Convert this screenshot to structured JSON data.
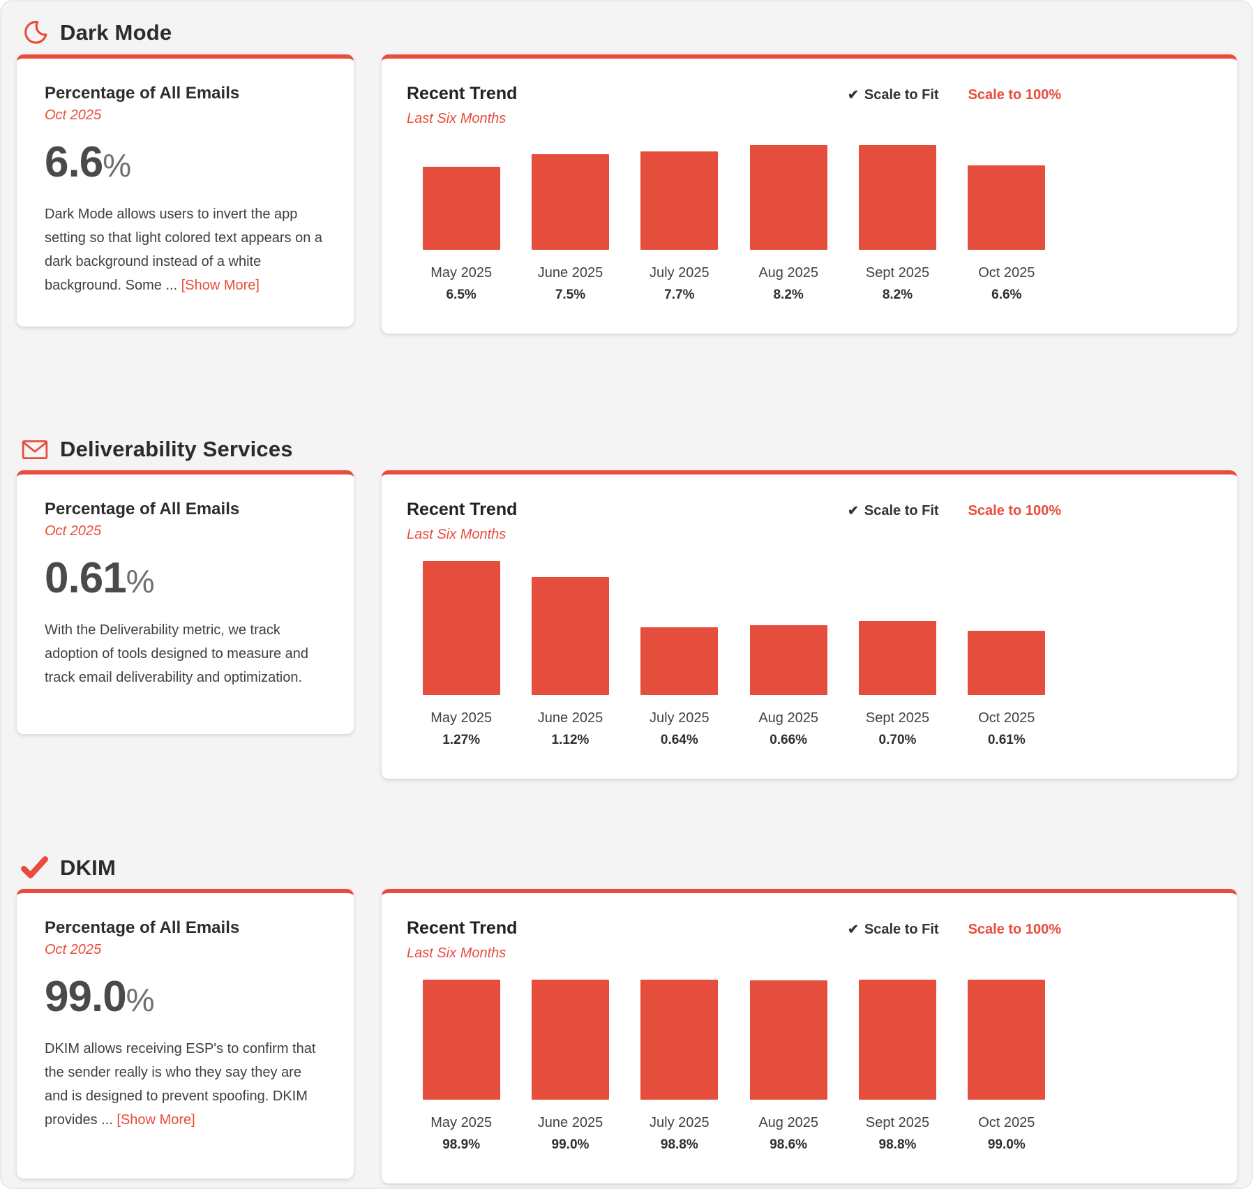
{
  "accent_color": "#e74c3c",
  "bar_color": "#e54d3d",
  "sections": [
    {
      "title": "Dark Mode",
      "icon": "moon-icon",
      "summary": {
        "heading": "Percentage of All Emails",
        "period": "Oct 2025",
        "value": "6.6",
        "unit": "%",
        "description": "Dark Mode allows users to invert the app setting so that light colored text appears on a dark background instead of a white background. Some ...",
        "show_more_label": "[Show More]"
      },
      "trend": {
        "heading": "Recent Trend",
        "subheading": "Last Six Months",
        "scale_fit_label": "Scale to Fit",
        "scale_fit_check": "✔",
        "scale_100_label": "Scale to 100%",
        "active_scale": "fit"
      },
      "chart_data": {
        "type": "bar",
        "categories": [
          "May 2025",
          "June 2025",
          "July 2025",
          "Aug 2025",
          "Sept 2025",
          "Oct 2025"
        ],
        "values": [
          6.5,
          7.5,
          7.7,
          8.2,
          8.2,
          6.6
        ],
        "labels": [
          "6.5%",
          "7.5%",
          "7.7%",
          "8.2%",
          "8.2%",
          "6.6%"
        ],
        "title": "Recent Trend",
        "xlabel": "",
        "ylabel": "Percentage of All Emails",
        "scale_mode": "fit",
        "grid": false,
        "legend": "none"
      }
    },
    {
      "title": "Deliverability Services",
      "icon": "envelope-icon",
      "summary": {
        "heading": "Percentage of All Emails",
        "period": "Oct 2025",
        "value": "0.61",
        "unit": "%",
        "description": "With the Deliverability metric, we track adoption of tools designed to measure and track email deliverability and optimization.",
        "show_more_label": null
      },
      "trend": {
        "heading": "Recent Trend",
        "subheading": "Last Six Months",
        "scale_fit_label": "Scale to Fit",
        "scale_fit_check": "✔",
        "scale_100_label": "Scale to 100%",
        "active_scale": "fit"
      },
      "chart_data": {
        "type": "bar",
        "categories": [
          "May 2025",
          "June 2025",
          "July 2025",
          "Aug 2025",
          "Sept 2025",
          "Oct 2025"
        ],
        "values": [
          1.27,
          1.12,
          0.64,
          0.66,
          0.7,
          0.61
        ],
        "labels": [
          "1.27%",
          "1.12%",
          "0.64%",
          "0.66%",
          "0.70%",
          "0.61%"
        ],
        "title": "Recent Trend",
        "xlabel": "",
        "ylabel": "Percentage of All Emails",
        "scale_mode": "fit",
        "grid": false,
        "legend": "none"
      }
    },
    {
      "title": "DKIM",
      "icon": "check-icon",
      "summary": {
        "heading": "Percentage of All Emails",
        "period": "Oct 2025",
        "value": "99.0",
        "unit": "%",
        "description": "DKIM allows receiving ESP's to confirm that the sender really is who they say they are and is designed to prevent spoofing. DKIM provides ...",
        "show_more_label": "[Show More]"
      },
      "trend": {
        "heading": "Recent Trend",
        "subheading": "Last Six Months",
        "scale_fit_label": "Scale to Fit",
        "scale_fit_check": "✔",
        "scale_100_label": "Scale to 100%",
        "active_scale": "fit"
      },
      "chart_data": {
        "type": "bar",
        "categories": [
          "May 2025",
          "June 2025",
          "July 2025",
          "Aug 2025",
          "Sept 2025",
          "Oct 2025"
        ],
        "values": [
          98.9,
          99.0,
          98.8,
          98.6,
          98.8,
          99.0
        ],
        "labels": [
          "98.9%",
          "99.0%",
          "98.8%",
          "98.6%",
          "98.8%",
          "99.0%"
        ],
        "title": "Recent Trend",
        "xlabel": "",
        "ylabel": "Percentage of All Emails",
        "scale_mode": "fit",
        "grid": false,
        "legend": "none"
      }
    }
  ]
}
